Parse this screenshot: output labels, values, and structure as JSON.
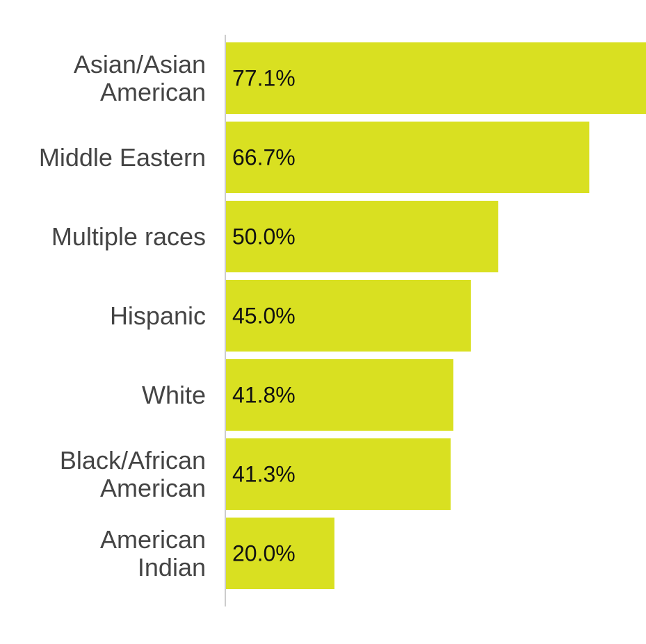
{
  "chart_data": {
    "type": "bar",
    "orientation": "horizontal",
    "categories": [
      [
        "Asian/Asian",
        "American"
      ],
      [
        "Middle Eastern"
      ],
      [
        "Multiple races"
      ],
      [
        "Hispanic"
      ],
      [
        "White"
      ],
      [
        "Black/African",
        "American"
      ],
      [
        "American",
        "Indian"
      ]
    ],
    "values": [
      77.1,
      66.7,
      50.0,
      45.0,
      41.8,
      41.3,
      20.0
    ],
    "value_labels": [
      "77.1%",
      "66.7%",
      "50.0%",
      "45.0%",
      "41.8%",
      "41.3%",
      "20.0%"
    ],
    "xlim": [
      0,
      77.1
    ],
    "bar_color": "#d9e021",
    "axis_color": "#cccccc",
    "grid": false,
    "legend": "none",
    "title": "",
    "xlabel": "",
    "ylabel": ""
  }
}
